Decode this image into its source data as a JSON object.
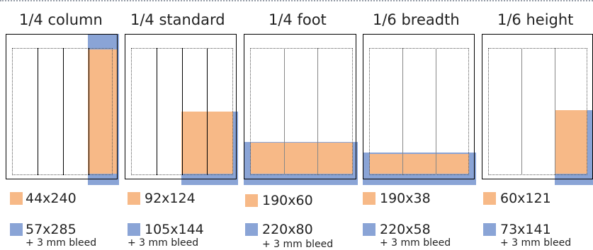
{
  "colors": {
    "ad": "#f7b987",
    "bleed": "#8aa4d6",
    "frame": "#000000"
  },
  "legend": {
    "ad_swatch_color": "#f7b987",
    "bleed_swatch_color": "#8aa4d6"
  },
  "formats": [
    {
      "title": "1/4 column",
      "ad_size": "44x240",
      "bleed_size": "57x285",
      "bleed_note": "+ 3 mm bleed"
    },
    {
      "title": "1/4 standard",
      "ad_size": "92x124",
      "bleed_size": "105x144",
      "bleed_note": "+ 3 mm bleed"
    },
    {
      "title": "1/4 foot",
      "ad_size": "190x60",
      "bleed_size": "220x80",
      "bleed_note": "+ 3 mm bleed"
    },
    {
      "title": "1/6 breadth",
      "ad_size": "190x38",
      "bleed_size": "220x58",
      "bleed_note": "+ 3 mm bleed"
    },
    {
      "title": "1/6 height",
      "ad_size": "60x121",
      "bleed_size": "73x141",
      "bleed_note": "+ 3 mm bleed"
    }
  ]
}
